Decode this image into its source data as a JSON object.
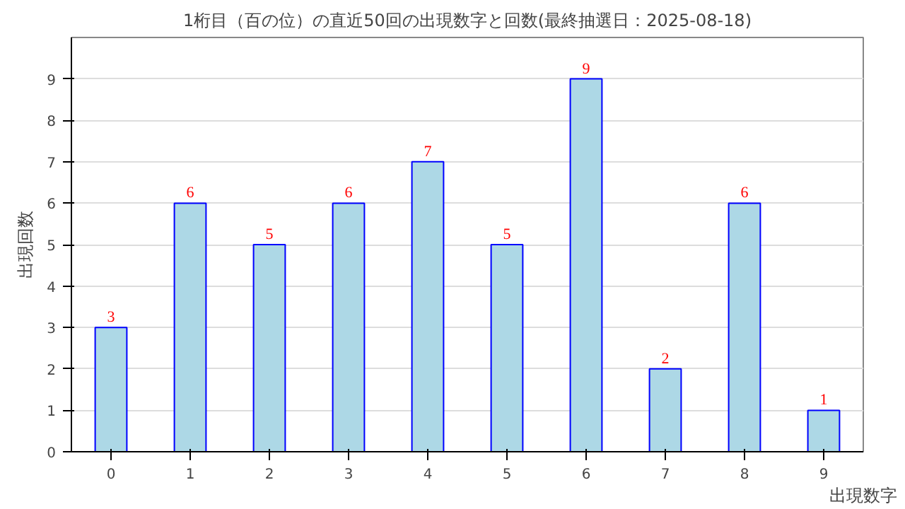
{
  "chart_data": {
    "type": "bar",
    "title": "1桁目（百の位）の直近50回の出現数字と回数(最終抽選日：2025-08-18)",
    "xlabel": "出現数字",
    "ylabel": "出現回数",
    "categories": [
      "0",
      "1",
      "2",
      "3",
      "4",
      "5",
      "6",
      "7",
      "8",
      "9"
    ],
    "values": [
      3,
      6,
      5,
      6,
      7,
      5,
      9,
      2,
      6,
      1
    ],
    "color": "#add8e6",
    "ylim": [
      0,
      10
    ],
    "yticks": [
      0,
      1,
      2,
      3,
      4,
      5,
      6,
      7,
      8,
      9
    ],
    "grid": "y",
    "data_labels": true
  }
}
